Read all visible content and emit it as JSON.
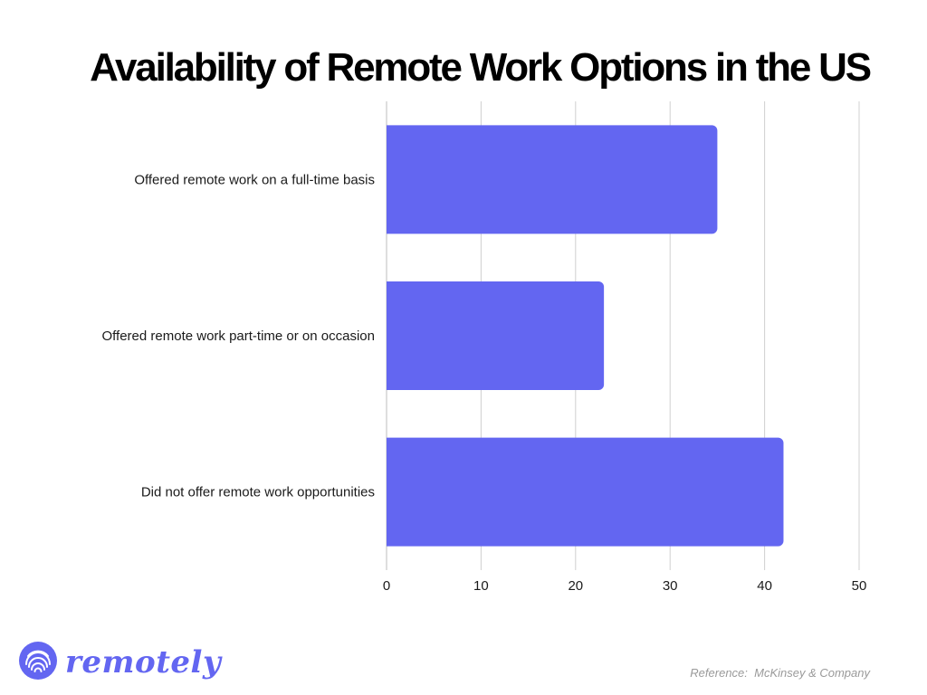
{
  "chart_data": {
    "type": "bar",
    "orientation": "horizontal",
    "title": "Availability of Remote Work Options in the US",
    "categories": [
      "Offered remote work on a full-time basis",
      "Offered remote work part-time or on occasion",
      "Did not offer remote work opportunities"
    ],
    "values": [
      35,
      23,
      42
    ],
    "xlim": [
      0,
      50
    ],
    "xticks": [
      "0",
      "10",
      "20",
      "30",
      "40",
      "50"
    ],
    "grid": true,
    "legend": "none",
    "bar_color": "#6366F1"
  },
  "branding": {
    "logo_text": "remotely",
    "logo_icon": "fingerprint-icon",
    "brand_color": "#6366F1"
  },
  "footer": {
    "reference": "Reference:  McKinsey & Company"
  }
}
